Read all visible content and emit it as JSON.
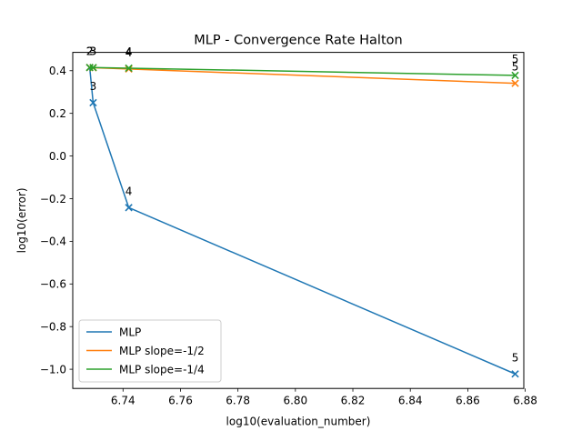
{
  "chart_data": {
    "type": "line",
    "title": "MLP - Convergence Rate Halton",
    "xlabel": "log10(evaluation_number)",
    "ylabel": "log10(error)",
    "xlim": [
      6.7225,
      6.8795
    ],
    "ylim": [
      -1.09,
      0.486
    ],
    "xticks": [
      6.74,
      6.76,
      6.78,
      6.8,
      6.82,
      6.84,
      6.86,
      6.88
    ],
    "xtick_labels": [
      "6.74",
      "6.76",
      "6.78",
      "6.80",
      "6.82",
      "6.84",
      "6.86",
      "6.88"
    ],
    "yticks": [
      -1.0,
      -0.8,
      -0.6,
      -0.4,
      -0.2,
      0.0,
      0.2,
      0.4
    ],
    "ytick_labels": [
      "−1.0",
      "−0.8",
      "−0.6",
      "−0.4",
      "−0.2",
      "0.0",
      "0.2",
      "0.4"
    ],
    "grid": false,
    "legend_position": "lower-left",
    "marker": "x",
    "series": [
      {
        "name": "MLP",
        "color": "#1f77b4",
        "x": [
          6.7284,
          6.7296,
          6.742,
          6.8765
        ],
        "y": [
          0.415,
          0.25,
          -0.242,
          -1.022
        ],
        "labels": [
          "2",
          "3",
          "4",
          "5"
        ]
      },
      {
        "name": "MLP slope=-1/2",
        "color": "#ff7f0e",
        "x": [
          6.7284,
          6.7296,
          6.742,
          6.8765
        ],
        "y": [
          0.415,
          0.414,
          0.408,
          0.341
        ],
        "labels": [
          "2",
          "3",
          "4",
          "5"
        ]
      },
      {
        "name": "MLP slope=-1/4",
        "color": "#2ca02c",
        "x": [
          6.7284,
          6.7296,
          6.742,
          6.8765
        ],
        "y": [
          0.415,
          0.415,
          0.412,
          0.378
        ],
        "labels": [
          "2",
          "3",
          "4",
          "5"
        ]
      }
    ]
  }
}
